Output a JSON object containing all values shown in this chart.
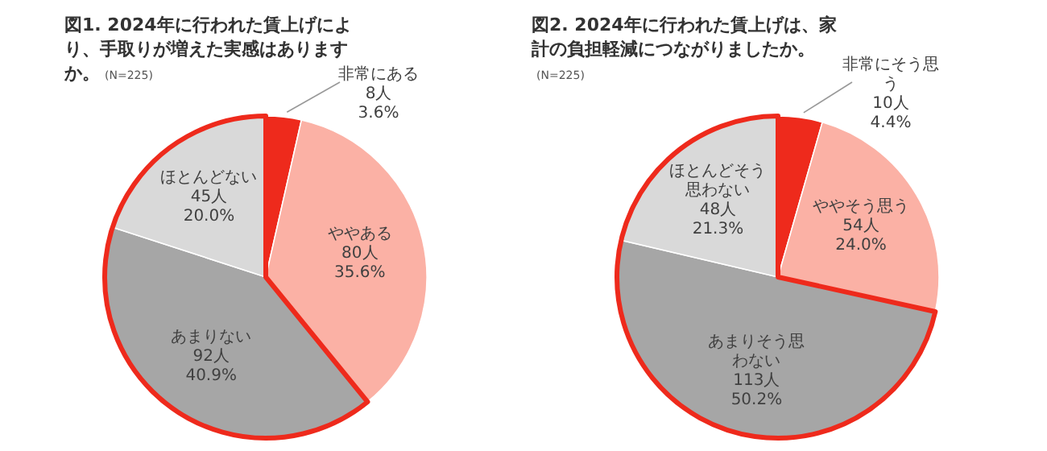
{
  "chart_data": [
    {
      "type": "pie",
      "title": "図1. 2024年に行われた賃上げにより、手取りが増えた実感はありますか。",
      "subtitle": "(N=225)",
      "categories": [
        "非常にある",
        "ややある",
        "あまりない",
        "ほとんどない"
      ],
      "values": [
        8,
        80,
        92,
        45
      ],
      "colors": [
        "#ee2a1c",
        "#fbb1a5",
        "#a6a6a6",
        "#d9d9d9"
      ],
      "value_labels": [
        "8人\n3.6%",
        "80人\n35.6%",
        "92人\n40.9%",
        "45人\n20.0%"
      ]
    },
    {
      "type": "pie",
      "title": "図2. 2024年に行われた賃上げは、家計の負担軽減につながりましたか。",
      "subtitle": "(N=225)",
      "categories": [
        "非常にそう思う",
        "ややそう思う",
        "あまりそう思わない",
        "ほとんどそう思わない"
      ],
      "values": [
        10,
        54,
        113,
        48
      ],
      "colors": [
        "#ee2a1c",
        "#fbb1a5",
        "#a6a6a6",
        "#d9d9d9"
      ],
      "value_labels": [
        "10人\n4.4%",
        "54人\n24.0%",
        "113人\n50.2%",
        "48人\n21.3%"
      ]
    }
  ]
}
